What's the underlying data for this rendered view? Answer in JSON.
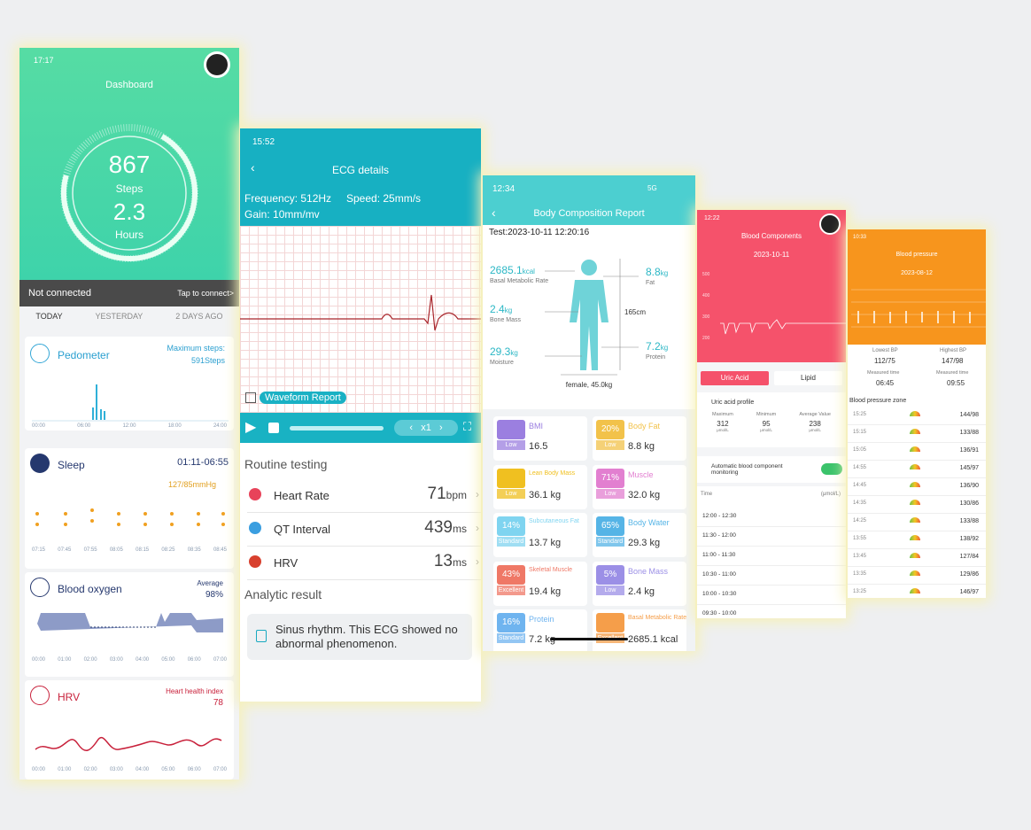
{
  "dashboard": {
    "time": "17:17",
    "title": "Dashboard",
    "steps": "867",
    "steps_label": "Steps",
    "hours": "2.3",
    "hours_label": "Hours",
    "status": "Not connected",
    "connect": "Tap to connect>",
    "tabs": [
      "TODAY",
      "YESTERDAY",
      "2 DAYS AGO"
    ],
    "pedometer": {
      "title": "Pedometer",
      "note": "Maximum steps:",
      "value": "591Steps",
      "axis": [
        "00:00",
        "06:00",
        "12:00",
        "18:00",
        "24:00"
      ]
    },
    "sleep": {
      "title": "Sleep",
      "range": "01:11-06:55",
      "behind": "127/85mmHg",
      "axis": [
        "07:15",
        "07:45",
        "07:55",
        "08:05",
        "08:15",
        "08:25",
        "08:35",
        "08:45"
      ]
    },
    "oxygen": {
      "title": "Blood oxygen",
      "note": "Average",
      "value": "98%",
      "axis": [
        "00:00",
        "01:00",
        "02:00",
        "03:00",
        "04:00",
        "05:00",
        "06:00",
        "07:00"
      ]
    },
    "hrv": {
      "title": "HRV",
      "note": "Heart health index",
      "value": "78",
      "axis": [
        "00:00",
        "01:00",
        "02:00",
        "03:00",
        "04:00",
        "05:00",
        "06:00",
        "07:00"
      ]
    }
  },
  "ecg": {
    "time": "15:52",
    "title": "ECG details",
    "frequency": "Frequency: 512Hz",
    "speed": "Speed: 25mm/s",
    "gain": "Gain: 10mm/mv",
    "waveform": "Waveform Report",
    "playback": "x1",
    "routine": "Routine testing",
    "rows": [
      {
        "label": "Heart Rate",
        "value": "71",
        "unit": "bpm"
      },
      {
        "label": "QT Interval",
        "value": "439",
        "unit": "ms"
      },
      {
        "label": "HRV",
        "value": "13",
        "unit": "ms"
      }
    ],
    "analytic": "Analytic result",
    "result": "Sinus rhythm. This ECG showed no abnormal phenomenon."
  },
  "body": {
    "time": "12:34",
    "network": "5G",
    "title": "Body Composition Report",
    "test": "Test:2023-10-11 12:20:16",
    "left": [
      {
        "value": "2685.1",
        "unit": "kcal",
        "label": "Basal Metabolic Rate"
      },
      {
        "value": "2.4",
        "unit": "kg",
        "label": "Bone Mass"
      },
      {
        "value": "29.3",
        "unit": "kg",
        "label": "Moisture"
      }
    ],
    "right": [
      {
        "value": "8.8",
        "unit": "kg",
        "label": "Fat"
      },
      {
        "value": "7.2",
        "unit": "kg",
        "label": "Protein"
      }
    ],
    "height": "165cm",
    "figure": "female, 45.0kg",
    "cards": [
      {
        "name": "BMI",
        "badge": "Low",
        "value": "16.5"
      },
      {
        "name": "Body Fat",
        "pct": "20%",
        "badge": "Low",
        "value": "8.8 kg"
      },
      {
        "name": "Lean Body Mass",
        "badge": "Low",
        "value": "36.1 kg"
      },
      {
        "name": "Muscle",
        "pct": "71%",
        "badge": "Low",
        "value": "32.0 kg"
      },
      {
        "name": "Subcutaneous Fat",
        "pct": "14%",
        "badge": "Standard",
        "value": "13.7 kg"
      },
      {
        "name": "Body Water",
        "pct": "65%",
        "badge": "Standard",
        "value": "29.3 kg"
      },
      {
        "name": "Skeletal Muscle",
        "pct": "43%",
        "badge": "Excellent",
        "value": "19.4 kg"
      },
      {
        "name": "Bone Mass",
        "pct": "5%",
        "badge": "Low",
        "value": "2.4 kg"
      },
      {
        "name": "Protein",
        "pct": "16%",
        "badge": "Standard",
        "value": "7.2 kg"
      },
      {
        "name": "Basal Metabolic Rate",
        "badge": "Excellent",
        "value": "2685.1 kcal"
      }
    ]
  },
  "blood": {
    "time": "12:22",
    "title": "Blood Components",
    "date": "2023-10-11",
    "yaxis": [
      "500",
      "400",
      "300",
      "200"
    ],
    "tabs": [
      "Uric Acid",
      "Lipid"
    ],
    "profile": "Uric acid profile",
    "stats": [
      {
        "label": "Maximum",
        "value": "312",
        "unit": "μmol/L"
      },
      {
        "label": "Minimum",
        "value": "95",
        "unit": "μmol/L"
      },
      {
        "label": "Average Value",
        "value": "238",
        "unit": "μmol/L"
      }
    ],
    "monitor": "Automatic blood component monitoring",
    "time_head": "Time",
    "unit_head": "(μmol/L)",
    "times": [
      "12:00 - 12:30",
      "11:30 - 12:00",
      "11:00 - 11:30",
      "10:30 - 11:00",
      "10:00 - 10:30",
      "09:30 - 10:00"
    ]
  },
  "pressure": {
    "time": "10:33",
    "title": "Blood pressure",
    "date": "2023-08-12",
    "lowest": {
      "label": "Lowest BP",
      "value": "112/75",
      "time_label": "Measured time",
      "time": "06:45"
    },
    "highest": {
      "label": "Highest BP",
      "value": "147/98",
      "time_label": "Measured time",
      "time": "09:55"
    },
    "zone": "Blood pressure zone",
    "rows": [
      {
        "time": "15:25",
        "value": "144/98"
      },
      {
        "time": "15:15",
        "value": "133/88"
      },
      {
        "time": "15:05",
        "value": "136/91"
      },
      {
        "time": "14:55",
        "value": "145/97"
      },
      {
        "time": "14:45",
        "value": "136/90"
      },
      {
        "time": "14:35",
        "value": "130/86"
      },
      {
        "time": "14:25",
        "value": "133/88"
      },
      {
        "time": "13:55",
        "value": "138/92"
      },
      {
        "time": "13:45",
        "value": "127/84"
      },
      {
        "time": "13:35",
        "value": "129/86"
      },
      {
        "time": "13:25",
        "value": "146/97"
      }
    ]
  }
}
